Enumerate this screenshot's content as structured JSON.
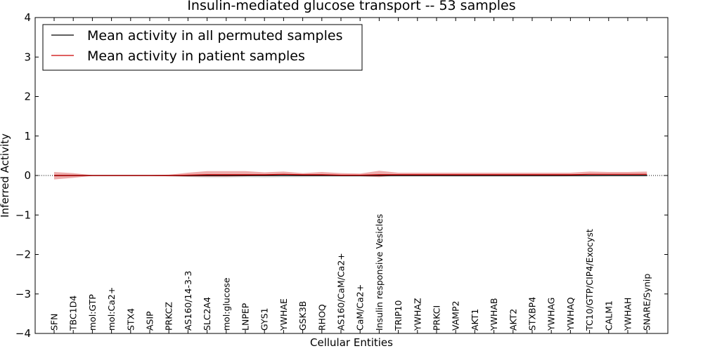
{
  "chart_data": {
    "type": "line",
    "title": "Insulin-mediated glucose transport -- 53 samples",
    "xlabel": "Cellular Entities",
    "ylabel": "Inferred Activity",
    "ylim": [
      -4,
      4
    ],
    "yticks": [
      -4,
      -3,
      -2,
      -1,
      0,
      1,
      2,
      3,
      4
    ],
    "ytick_labels": [
      "−4",
      "−3",
      "−2",
      "−1",
      "0",
      "1",
      "2",
      "3",
      "4"
    ],
    "grid": false,
    "legend_position": "top-left",
    "categories": [
      "SFN",
      "TBC1D4",
      "mol:GTP",
      "mol:Ca2+",
      "STX4",
      "ASIP",
      "PRKCZ",
      "AS160/14-3-3",
      "SLC2A4",
      "mol:glucose",
      "LNPEP",
      "GYS1",
      "YWHAE",
      "GSK3B",
      "RHOQ",
      "AS160/CaM/Ca2+",
      "CaM/Ca2+",
      "Insulin responsive Vesicles",
      "TRIP10",
      "YWHAZ",
      "PRKCI",
      "VAMP2",
      "AKT1",
      "YWHAB",
      "AKT2",
      "STXBP4",
      "YWHAG",
      "YWHAQ",
      "TC10/GTP/CIP4/Exocyst",
      "CALM1",
      "YWHAH",
      "SNARE/Synip"
    ],
    "series": [
      {
        "name": "Mean activity in all permuted samples",
        "color": "#000000",
        "values": [
          0,
          0,
          0,
          0,
          0,
          0,
          0,
          0,
          0,
          0,
          0,
          0,
          0,
          0,
          0,
          0,
          0,
          0,
          0,
          0,
          0,
          0,
          0,
          0,
          0,
          0,
          0,
          0,
          0,
          0,
          0,
          0
        ],
        "band_color": "#bbbbbb",
        "band_upper": [
          0.01,
          0.01,
          0.005,
          0.005,
          0.005,
          0.005,
          0.01,
          0.01,
          0.01,
          0.01,
          0.01,
          0.01,
          0.01,
          0.01,
          0.01,
          0.01,
          0.01,
          0.01,
          0.01,
          0.01,
          0.01,
          0.01,
          0.01,
          0.01,
          0.01,
          0.01,
          0.01,
          0.01,
          0.01,
          0.01,
          0.01,
          0.01
        ],
        "band_lower": [
          -0.03,
          -0.02,
          -0.005,
          -0.005,
          -0.005,
          -0.01,
          -0.02,
          -0.04,
          -0.06,
          -0.06,
          -0.05,
          -0.06,
          -0.05,
          -0.05,
          -0.04,
          -0.03,
          -0.03,
          -0.04,
          -0.03,
          -0.03,
          -0.03,
          -0.04,
          -0.04,
          -0.04,
          -0.04,
          -0.04,
          -0.04,
          -0.03,
          -0.03,
          -0.02,
          -0.02,
          -0.02
        ]
      },
      {
        "name": "Mean activity in patient samples",
        "color": "#cc0000",
        "values": [
          0.0,
          0.0,
          0.0,
          0.0,
          0.0,
          0.0,
          0.0,
          0.01,
          0.02,
          0.02,
          0.02,
          0.02,
          0.03,
          0.02,
          0.02,
          0.01,
          0.01,
          0.02,
          0.02,
          0.02,
          0.02,
          0.02,
          0.02,
          0.02,
          0.02,
          0.02,
          0.02,
          0.02,
          0.03,
          0.03,
          0.03,
          0.03
        ],
        "band_color": "#e06666",
        "band_upper": [
          0.09,
          0.06,
          0.01,
          0.01,
          0.01,
          0.01,
          0.02,
          0.06,
          0.09,
          0.09,
          0.09,
          0.06,
          0.07,
          0.04,
          0.07,
          0.05,
          0.04,
          0.1,
          0.05,
          0.05,
          0.05,
          0.05,
          0.05,
          0.05,
          0.05,
          0.05,
          0.05,
          0.05,
          0.07,
          0.06,
          0.06,
          0.07
        ],
        "band_lower": [
          -0.1,
          -0.06,
          -0.01,
          -0.01,
          -0.01,
          -0.01,
          -0.02,
          -0.04,
          -0.05,
          -0.05,
          -0.04,
          -0.02,
          -0.01,
          -0.01,
          -0.02,
          -0.03,
          -0.03,
          -0.06,
          -0.01,
          -0.01,
          -0.01,
          -0.01,
          -0.01,
          -0.01,
          -0.01,
          -0.01,
          -0.01,
          -0.01,
          -0.01,
          -0.01,
          -0.01,
          -0.01
        ]
      }
    ]
  }
}
